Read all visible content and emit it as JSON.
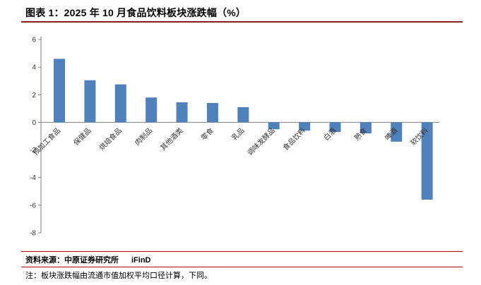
{
  "title": "图表 1：2025 年 10 月食品饮料板块涨跌幅（%）",
  "footer": {
    "source_label": "资料来源：中原证券研究所",
    "source_brand": "iFinD",
    "note": "注：板块涨跌幅由流通市值加权平均口径计算，下同。"
  },
  "colors": {
    "bar": "#4f81bd",
    "axis": "#7f7f7f",
    "tick_text": "#333333",
    "title_rule": "#8b1a1a",
    "footer_rule": "#c00000"
  },
  "chart_data": {
    "type": "bar",
    "title": "2025 年 10 月食品饮料板块涨跌幅（%）",
    "categories": [
      "预加工食品",
      "保健品",
      "烘焙食品",
      "肉制品",
      "其他酒类",
      "零食",
      "乳品",
      "调味发酵品",
      "食品饮料",
      "白酒",
      "熟食",
      "啤酒",
      "软饮料"
    ],
    "values": [
      4.6,
      3.05,
      2.75,
      1.8,
      1.45,
      1.4,
      1.1,
      -0.5,
      -0.6,
      -0.7,
      -0.8,
      -1.4,
      -5.6
    ],
    "xlabel": "",
    "ylabel": "",
    "ylim": [
      -8,
      6
    ],
    "yticks": [
      -8,
      -6,
      -4,
      -2,
      0,
      2,
      4,
      6
    ],
    "grid": false,
    "legend": "none"
  }
}
